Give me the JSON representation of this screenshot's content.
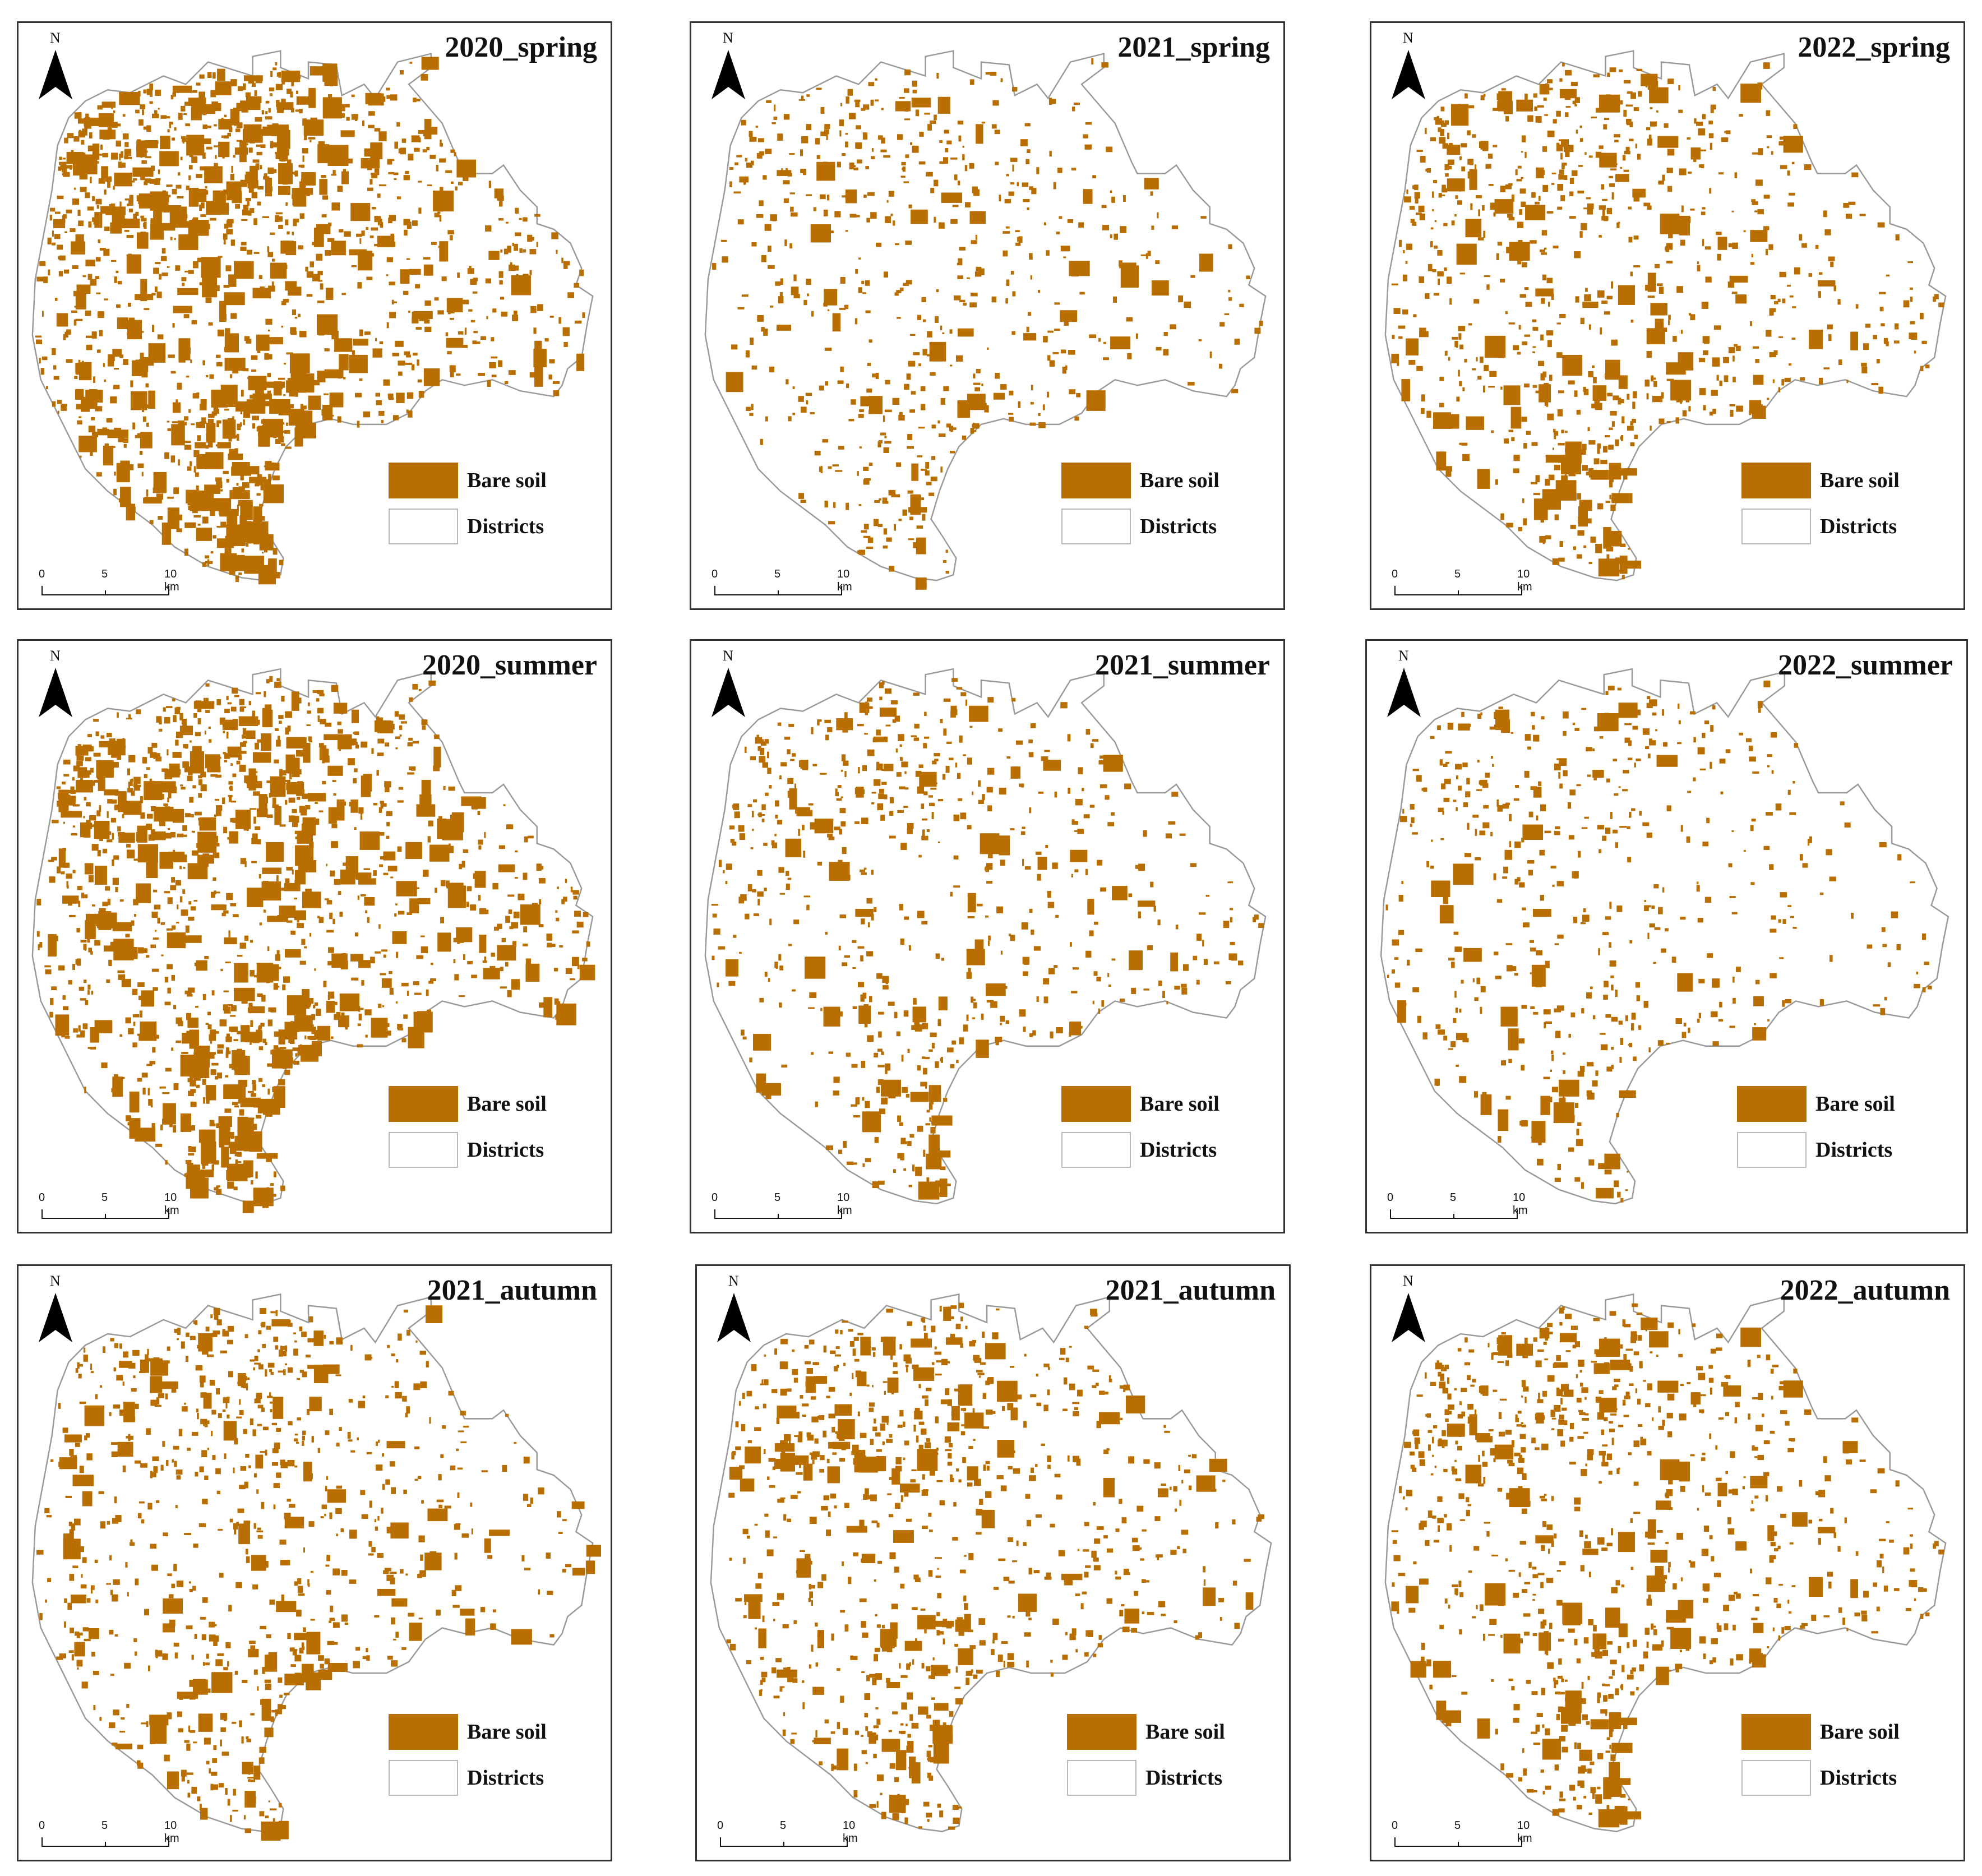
{
  "figure": {
    "panels": [
      {
        "title": "2020_spring",
        "density": 1.0,
        "seed": 11
      },
      {
        "title": "2021_spring",
        "density": 0.42,
        "seed": 23
      },
      {
        "title": "2022_spring",
        "density": 0.6,
        "seed": 37
      },
      {
        "title": "2020_summer",
        "density": 0.95,
        "seed": 41
      },
      {
        "title": "2021_summer",
        "density": 0.45,
        "seed": 53
      },
      {
        "title": "2022_summer",
        "density": 0.36,
        "seed": 67
      },
      {
        "title": "2021_autumn",
        "density": 0.55,
        "seed": 71
      },
      {
        "title": "2021_autumn",
        "density": 0.58,
        "seed": 83
      },
      {
        "title": "2022_autumn",
        "density": 0.6,
        "seed": 97
      }
    ],
    "north_label": "N",
    "legend": {
      "bare_soil": "Bare soil",
      "districts": "Districts"
    },
    "scale": {
      "labels": [
        "0",
        "5",
        "10 km"
      ]
    },
    "colors": {
      "bare_soil": "#b86e00",
      "outline": "#9a9a9a",
      "frame": "#333333"
    }
  }
}
